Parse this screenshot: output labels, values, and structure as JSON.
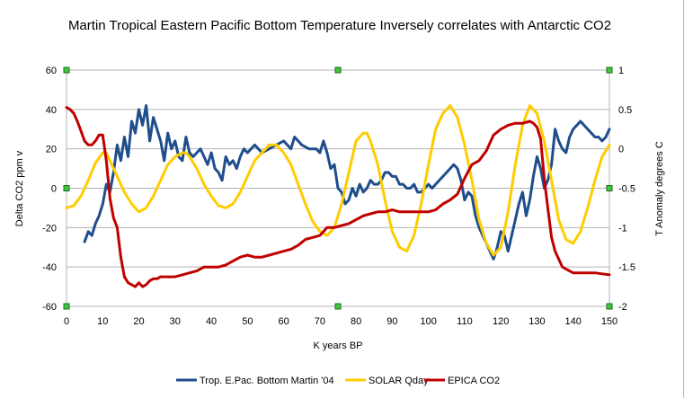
{
  "chart_data": {
    "type": "line",
    "title": "Martin Tropical Eastern Pacific Bottom Temperature Inversely correlates with Antarctic CO2",
    "xlabel": "K years BP",
    "ylabel_left": "Delta CO2 ppm v",
    "ylabel_right": "T Anomaly degrees C",
    "xlim": [
      0,
      150
    ],
    "ylim_left": [
      -60,
      60
    ],
    "ylim_right": [
      -2,
      1
    ],
    "x_ticks": [
      "0",
      "10",
      "20",
      "30",
      "40",
      "50",
      "60",
      "70",
      "80",
      "90",
      "100",
      "110",
      "120",
      "130",
      "140",
      "150"
    ],
    "y_left_ticks": [
      "-60",
      "-40",
      "-20",
      "0",
      "20",
      "40",
      "60"
    ],
    "y_right_ticks": [
      "-2",
      "-1.5",
      "-1",
      "-0.5",
      "0",
      "0.5",
      "1"
    ],
    "grid": true,
    "legend_position": "bottom",
    "series": [
      {
        "name": "Trop. E.Pac. Bottom Martin '04",
        "axis": "right",
        "color": "#1f4e8c",
        "x": [
          5,
          6,
          7,
          8,
          9,
          10,
          11,
          12,
          13,
          14,
          15,
          16,
          17,
          18,
          19,
          20,
          21,
          22,
          23,
          24,
          25,
          26,
          27,
          28,
          29,
          30,
          31,
          32,
          33,
          34,
          35,
          36,
          37,
          38,
          39,
          40,
          41,
          42,
          43,
          44,
          45,
          46,
          47,
          48,
          49,
          50,
          52,
          54,
          56,
          58,
          60,
          62,
          63,
          65,
          67,
          69,
          70,
          71,
          72,
          73,
          74,
          75,
          76,
          77,
          78,
          79,
          80,
          81,
          82,
          83,
          84,
          85,
          86,
          87,
          88,
          89,
          90,
          91,
          92,
          93,
          94,
          95,
          96,
          97,
          98,
          99,
          100,
          101,
          102,
          103,
          104,
          105,
          106,
          107,
          108,
          109,
          110,
          111,
          112,
          113,
          114,
          115,
          116,
          117,
          118,
          119,
          120,
          121,
          122,
          123,
          124,
          125,
          126,
          127,
          128,
          129,
          130,
          131,
          132,
          133,
          134,
          135,
          136,
          137,
          138,
          139,
          140,
          141,
          142,
          143,
          144,
          145,
          146,
          147,
          148,
          149,
          150
        ],
        "values": [
          -1.18,
          -1.05,
          -1.1,
          -0.95,
          -0.85,
          -0.7,
          -0.45,
          -0.55,
          -0.3,
          0.05,
          -0.15,
          0.15,
          -0.1,
          0.35,
          0.2,
          0.5,
          0.3,
          0.55,
          0.1,
          0.4,
          0.25,
          0.1,
          -0.15,
          0.2,
          0.0,
          0.1,
          -0.1,
          -0.15,
          0.15,
          -0.05,
          -0.1,
          -0.05,
          0.0,
          -0.1,
          -0.2,
          -0.05,
          -0.25,
          -0.3,
          -0.4,
          -0.1,
          -0.2,
          -0.15,
          -0.25,
          -0.1,
          0.0,
          -0.05,
          0.05,
          -0.05,
          0.0,
          0.05,
          0.1,
          0.0,
          0.15,
          0.05,
          0.0,
          0.0,
          -0.05,
          0.1,
          -0.05,
          -0.25,
          -0.2,
          -0.5,
          -0.55,
          -0.7,
          -0.65,
          -0.5,
          -0.6,
          -0.45,
          -0.55,
          -0.5,
          -0.4,
          -0.45,
          -0.45,
          -0.4,
          -0.3,
          -0.3,
          -0.35,
          -0.35,
          -0.45,
          -0.45,
          -0.5,
          -0.5,
          -0.45,
          -0.55,
          -0.55,
          -0.5,
          -0.45,
          -0.5,
          -0.45,
          -0.4,
          -0.35,
          -0.3,
          -0.25,
          -0.2,
          -0.25,
          -0.4,
          -0.65,
          -0.55,
          -0.6,
          -0.85,
          -1.0,
          -1.1,
          -1.2,
          -1.3,
          -1.4,
          -1.25,
          -1.05,
          -1.1,
          -1.3,
          -1.1,
          -0.9,
          -0.7,
          -0.55,
          -0.85,
          -0.65,
          -0.35,
          -0.1,
          -0.25,
          -0.5,
          -0.4,
          -0.2,
          0.25,
          0.1,
          0.0,
          -0.05,
          0.15,
          0.25,
          0.3,
          0.35,
          0.3,
          0.25,
          0.2,
          0.15,
          0.15,
          0.1,
          0.15,
          0.25
        ]
      },
      {
        "name": "SOLAR Qday",
        "axis": "right",
        "color": "#ffcc00",
        "x": [
          0,
          2,
          4,
          6,
          8,
          10,
          11,
          12,
          14,
          16,
          18,
          20,
          22,
          24,
          26,
          28,
          30,
          32,
          33,
          34,
          36,
          38,
          40,
          42,
          44,
          46,
          48,
          50,
          52,
          54,
          56,
          58,
          60,
          62,
          64,
          66,
          68,
          70,
          72,
          74,
          76,
          78,
          80,
          82,
          83,
          84,
          86,
          88,
          90,
          92,
          94,
          96,
          98,
          100,
          102,
          104,
          106,
          108,
          110,
          112,
          114,
          116,
          118,
          120,
          122,
          124,
          126,
          128,
          130,
          132,
          134,
          136,
          138,
          140,
          142,
          144,
          146,
          148,
          150
        ],
        "values": [
          -0.75,
          -0.72,
          -0.6,
          -0.4,
          -0.18,
          -0.05,
          -0.05,
          -0.15,
          -0.35,
          -0.55,
          -0.7,
          -0.8,
          -0.75,
          -0.6,
          -0.4,
          -0.2,
          -0.1,
          -0.05,
          -0.05,
          -0.1,
          -0.25,
          -0.45,
          -0.6,
          -0.72,
          -0.75,
          -0.7,
          -0.55,
          -0.35,
          -0.15,
          -0.05,
          0.05,
          0.05,
          -0.05,
          -0.2,
          -0.45,
          -0.7,
          -0.92,
          -1.05,
          -1.1,
          -1.0,
          -0.7,
          -0.3,
          0.1,
          0.2,
          0.2,
          0.1,
          -0.2,
          -0.65,
          -1.05,
          -1.25,
          -1.3,
          -1.1,
          -0.7,
          -0.2,
          0.25,
          0.45,
          0.55,
          0.4,
          0.05,
          -0.4,
          -0.9,
          -1.2,
          -1.35,
          -1.25,
          -0.8,
          -0.2,
          0.3,
          0.55,
          0.45,
          0.1,
          -0.4,
          -0.9,
          -1.15,
          -1.2,
          -1.05,
          -0.75,
          -0.4,
          -0.1,
          0.05
        ]
      },
      {
        "name": "EPICA CO2",
        "axis": "left",
        "color": "#c00000",
        "x": [
          0,
          1,
          2,
          3,
          4,
          5,
          6,
          7,
          8,
          9,
          10,
          11,
          12,
          13,
          14,
          15,
          16,
          17,
          18,
          19,
          20,
          21,
          22,
          23,
          24,
          25,
          26,
          28,
          30,
          32,
          34,
          36,
          38,
          40,
          42,
          44,
          46,
          48,
          50,
          52,
          54,
          56,
          58,
          60,
          62,
          64,
          66,
          68,
          70,
          72,
          74,
          76,
          78,
          80,
          82,
          84,
          86,
          88,
          90,
          92,
          94,
          96,
          98,
          100,
          102,
          104,
          106,
          108,
          110,
          112,
          114,
          116,
          118,
          120,
          122,
          124,
          126,
          128,
          129,
          130,
          131,
          132,
          133,
          134,
          135,
          136,
          137,
          138,
          139,
          140,
          142,
          144,
          146,
          148,
          150
        ],
        "values": [
          41,
          40,
          38,
          34,
          29,
          24,
          22,
          22,
          24,
          27,
          27,
          14,
          -5,
          -15,
          -20,
          -35,
          -45,
          -48,
          -49,
          -50,
          -48,
          -50,
          -49,
          -47,
          -46,
          -46,
          -45,
          -45,
          -45,
          -44,
          -43,
          -42,
          -40,
          -40,
          -40,
          -39,
          -37,
          -35,
          -34,
          -35,
          -35,
          -34,
          -33,
          -32,
          -31,
          -29,
          -26,
          -25,
          -24,
          -20,
          -20,
          -19,
          -18,
          -16,
          -14,
          -13,
          -12,
          -12,
          -11,
          -12,
          -12,
          -12,
          -12,
          -12,
          -11,
          -8,
          -6,
          -3,
          5,
          12,
          14,
          19,
          27,
          30,
          32,
          33,
          33,
          34,
          33,
          31,
          25,
          5,
          -10,
          -25,
          -32,
          -36,
          -40,
          -41,
          -42,
          -43,
          -43,
          -43,
          -43,
          -43.5,
          -44
        ]
      }
    ]
  },
  "legend": {
    "items": [
      {
        "label": "Trop. E.Pac. Bottom Martin '04",
        "color": "#1f4e8c"
      },
      {
        "label": "SOLAR Qday",
        "color": "#ffcc00"
      },
      {
        "label": "EPICA CO2",
        "color": "#c00000"
      }
    ]
  }
}
